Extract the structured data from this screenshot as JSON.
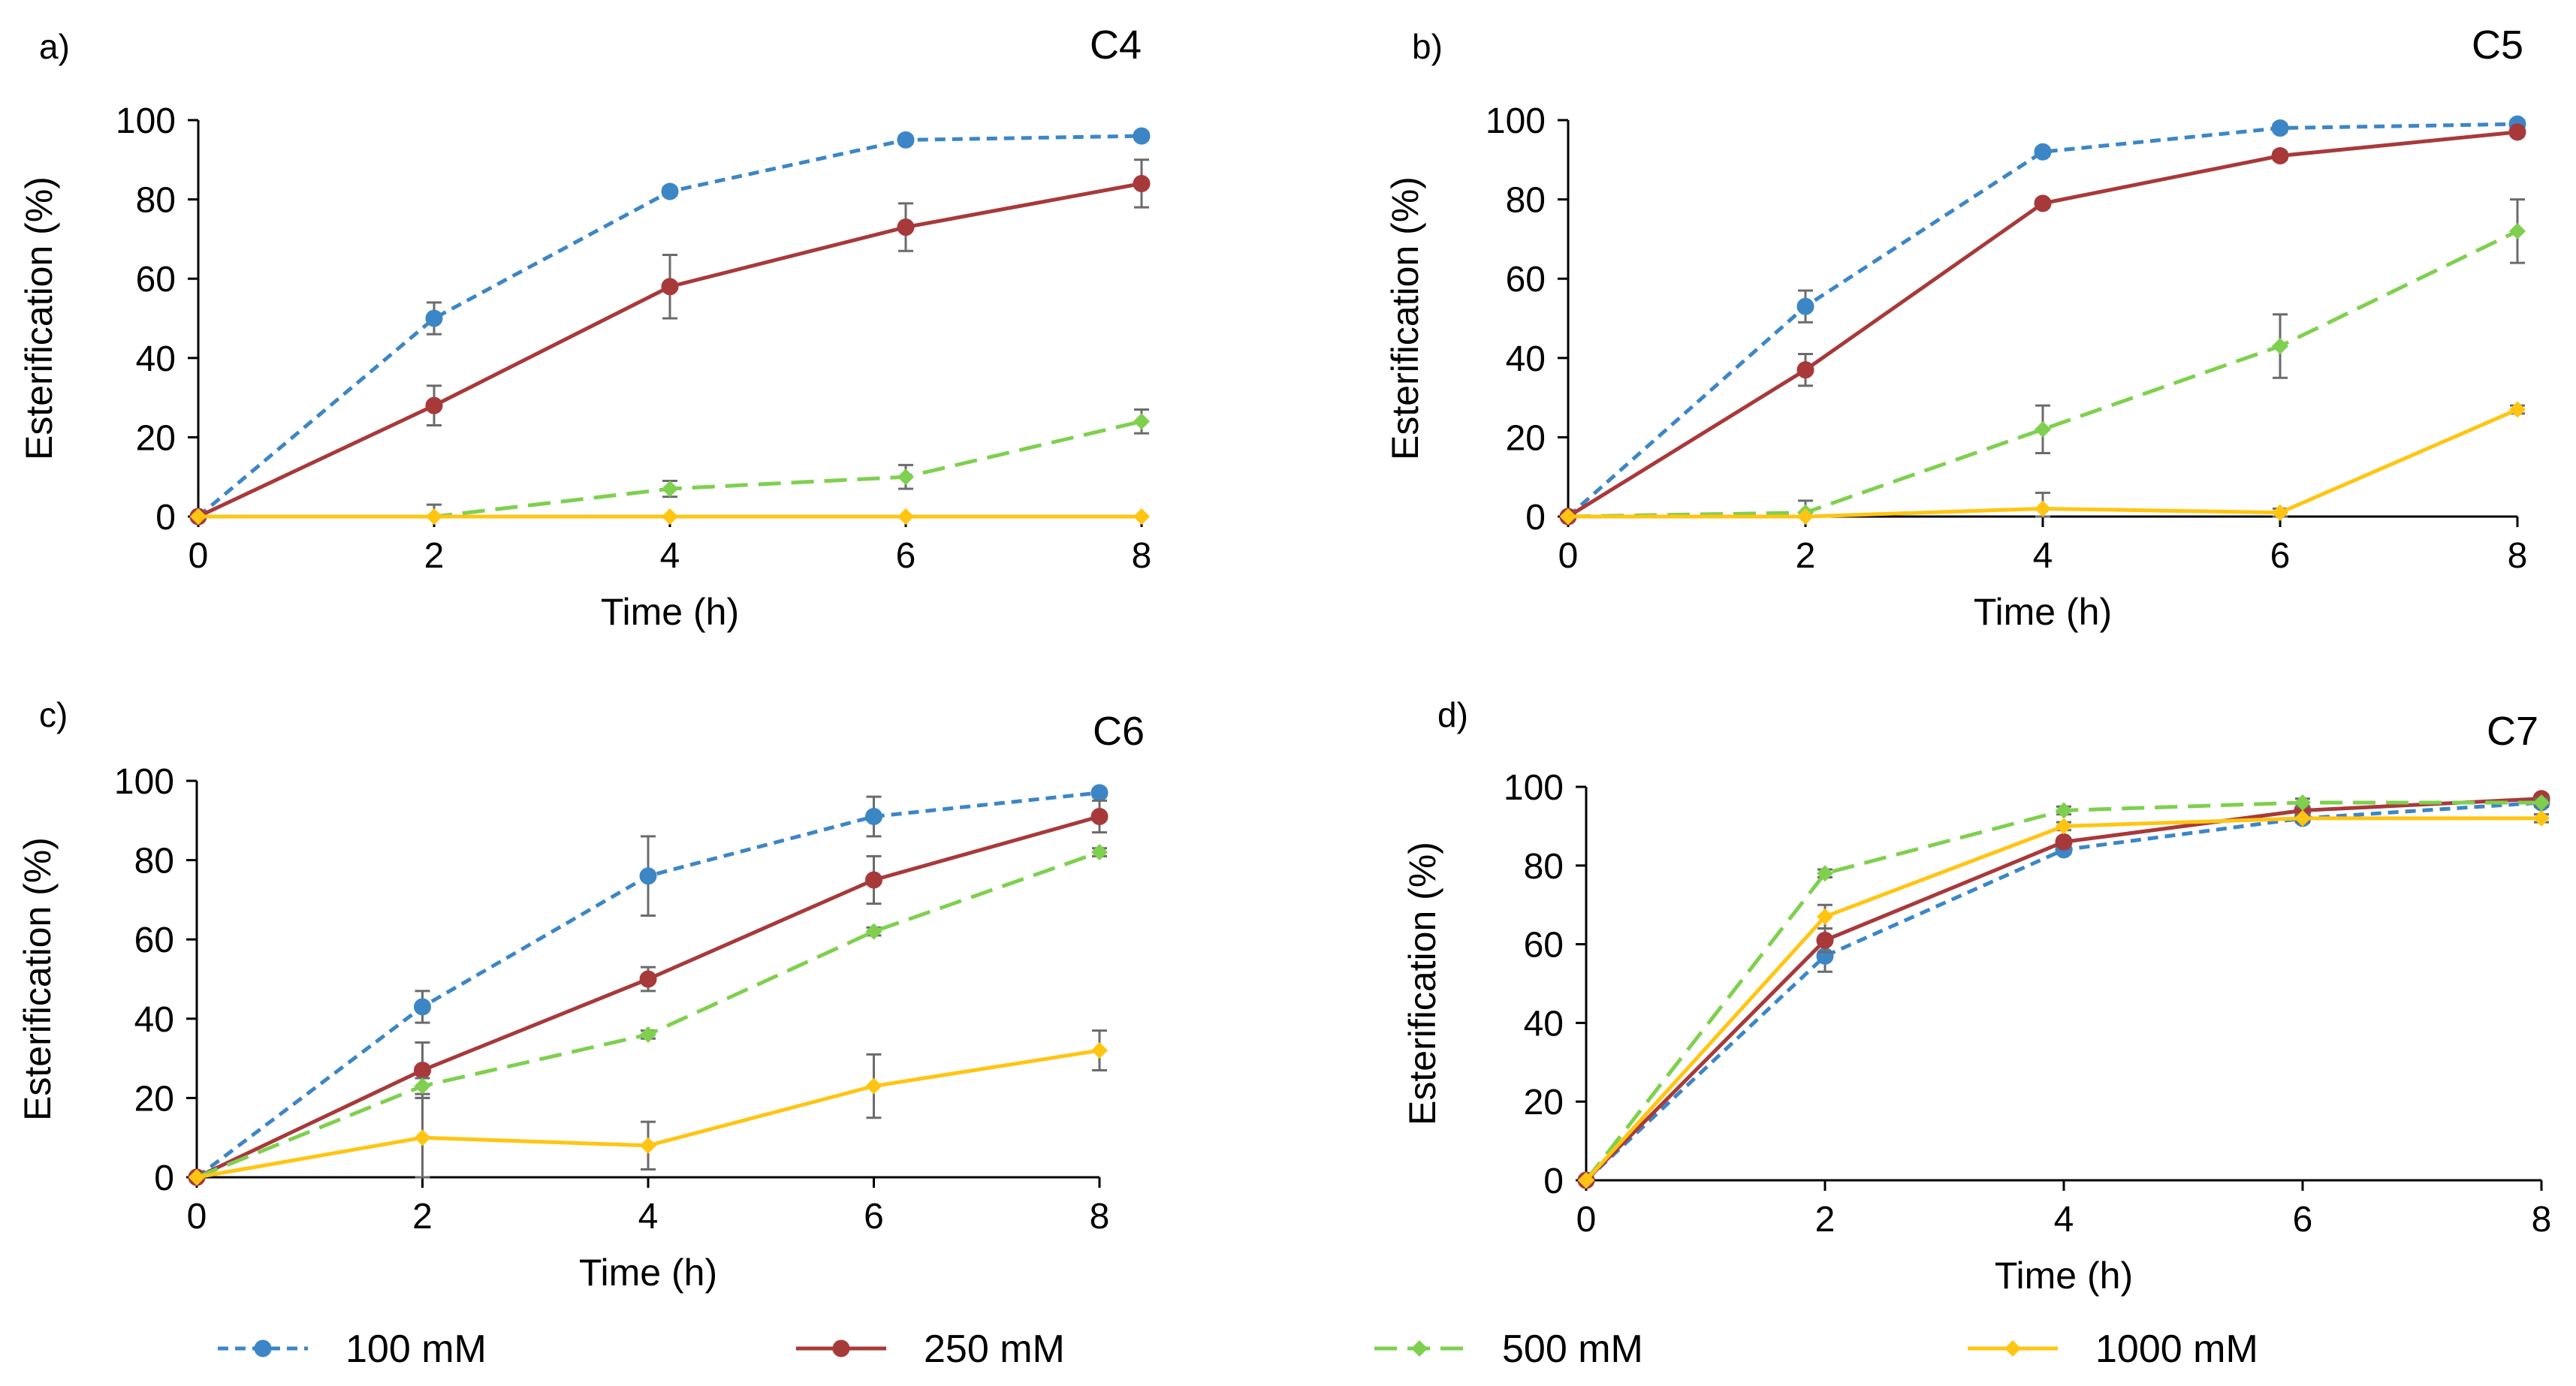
{
  "series_styles": [
    {
      "name": "100 mM",
      "color": "#3C86C6",
      "dash": "dashed-short",
      "marker": "circle"
    },
    {
      "name": "250 mM",
      "color": "#A8393A",
      "dash": "solid",
      "marker": "circle"
    },
    {
      "name": "500 mM",
      "color": "#7ED04E",
      "dash": "dashed-long",
      "marker": "diamond"
    },
    {
      "name": "1000 mM",
      "color": "#FFC512",
      "dash": "solid",
      "marker": "diamond"
    }
  ],
  "legend": [
    "100 mM",
    "250 mM",
    "500 mM",
    "1000 mM"
  ],
  "chart_data": [
    {
      "type": "line",
      "panel": "a)",
      "title": "C4",
      "xlabel": "Time (h)",
      "ylabel": "Esterification (%)",
      "x": [
        0,
        2,
        4,
        6,
        8
      ],
      "xticks": [
        "0",
        "2",
        "4",
        "6",
        "8"
      ],
      "yticks": [
        "0",
        "20",
        "40",
        "60",
        "80",
        "100"
      ],
      "ylim": [
        0,
        100
      ],
      "series": [
        {
          "name": "100 mM",
          "values": [
            0,
            50,
            82,
            95,
            96
          ],
          "errors": [
            0,
            4,
            1,
            1,
            1
          ]
        },
        {
          "name": "250 mM",
          "values": [
            0,
            28,
            58,
            73,
            84
          ],
          "errors": [
            0,
            5,
            8,
            6,
            6
          ]
        },
        {
          "name": "500 mM",
          "values": [
            0,
            0,
            7,
            10,
            24
          ],
          "errors": [
            0,
            3,
            2,
            3,
            3
          ]
        },
        {
          "name": "1000 mM",
          "values": [
            0,
            0,
            0,
            0,
            0
          ],
          "errors": [
            0,
            0,
            0,
            0,
            0
          ]
        }
      ]
    },
    {
      "type": "line",
      "panel": "b)",
      "title": "C5",
      "xlabel": "Time (h)",
      "ylabel": "Esterification (%)",
      "x": [
        0,
        2,
        4,
        6,
        8
      ],
      "xticks": [
        "0",
        "2",
        "4",
        "6",
        "8"
      ],
      "yticks": [
        "0",
        "20",
        "40",
        "60",
        "80",
        "100"
      ],
      "ylim": [
        0,
        100
      ],
      "series": [
        {
          "name": "100 mM",
          "values": [
            0,
            53,
            92,
            98,
            99
          ],
          "errors": [
            0,
            4,
            1,
            1,
            1
          ]
        },
        {
          "name": "250 mM",
          "values": [
            0,
            37,
            79,
            91,
            97
          ],
          "errors": [
            0,
            4,
            1,
            1,
            1
          ]
        },
        {
          "name": "500 mM",
          "values": [
            0,
            1,
            22,
            43,
            72
          ],
          "errors": [
            0,
            3,
            6,
            8,
            8
          ]
        },
        {
          "name": "1000 mM",
          "values": [
            0,
            0,
            2,
            1,
            27
          ],
          "errors": [
            0,
            0,
            4,
            1,
            1
          ]
        }
      ]
    },
    {
      "type": "line",
      "panel": "c)",
      "title": "C6",
      "xlabel": "Time (h)",
      "ylabel": "Esterification (%)",
      "x": [
        0,
        2,
        4,
        6,
        8
      ],
      "xticks": [
        "0",
        "2",
        "4",
        "6",
        "8"
      ],
      "yticks": [
        "0",
        "20",
        "40",
        "60",
        "80",
        "100"
      ],
      "ylim": [
        0,
        100
      ],
      "series": [
        {
          "name": "100 mM",
          "values": [
            0,
            43,
            76,
            91,
            97
          ],
          "errors": [
            0,
            4,
            10,
            5,
            1
          ]
        },
        {
          "name": "250 mM",
          "values": [
            0,
            27,
            50,
            75,
            91
          ],
          "errors": [
            0,
            7,
            3,
            6,
            4
          ]
        },
        {
          "name": "500 mM",
          "values": [
            0,
            23,
            36,
            62,
            82
          ],
          "errors": [
            0,
            2,
            1,
            1,
            1
          ]
        },
        {
          "name": "1000 mM",
          "values": [
            0,
            10,
            8,
            23,
            32
          ],
          "errors": [
            0,
            10,
            6,
            8,
            5
          ]
        }
      ]
    },
    {
      "type": "line",
      "panel": "d)",
      "title": "C7",
      "xlabel": "Time (h)",
      "ylabel": "Esterification (%)",
      "x": [
        0,
        2,
        4,
        6,
        8
      ],
      "xticks": [
        "0",
        "2",
        "4",
        "6",
        "8"
      ],
      "yticks": [
        "0",
        "20",
        "40",
        "60",
        "80",
        "100"
      ],
      "ylim": [
        0,
        100
      ],
      "series": [
        {
          "name": "100 mM",
          "values": [
            0,
            57,
            84,
            92,
            96
          ],
          "errors": [
            0,
            4,
            1,
            1,
            1
          ]
        },
        {
          "name": "250 mM",
          "values": [
            0,
            61,
            86,
            94,
            97
          ],
          "errors": [
            0,
            3,
            1,
            1,
            1
          ]
        },
        {
          "name": "500 mM",
          "values": [
            0,
            78,
            94,
            96,
            96
          ],
          "errors": [
            0,
            1,
            1,
            1,
            1
          ]
        },
        {
          "name": "1000 mM",
          "values": [
            0,
            67,
            90,
            92,
            92
          ],
          "errors": [
            0,
            3,
            1,
            1,
            1
          ]
        }
      ]
    }
  ]
}
